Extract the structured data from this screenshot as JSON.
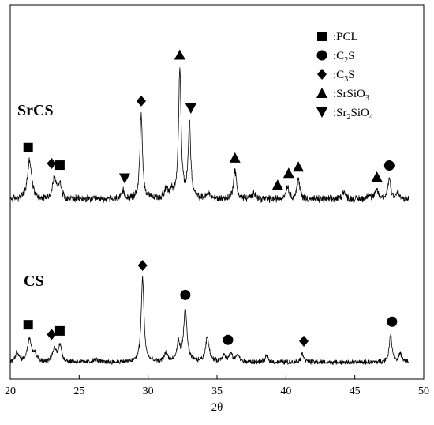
{
  "chart_data": {
    "type": "line",
    "title": "",
    "xlabel": "2θ",
    "ylabel": "",
    "xlim": [
      20,
      50
    ],
    "xticks": [
      20,
      25,
      30,
      35,
      40,
      45,
      50
    ],
    "grid": false,
    "background_levels": {
      "SrCS": 0.07,
      "CS": 0.05
    },
    "series": [
      {
        "name": "SrCS",
        "peaks": [
          {
            "x": 21.4,
            "h": 0.3,
            "w": 0.18
          },
          {
            "x": 23.2,
            "h": 0.16,
            "w": 0.15
          },
          {
            "x": 23.6,
            "h": 0.12,
            "w": 0.15
          },
          {
            "x": 28.2,
            "h": 0.06,
            "w": 0.12
          },
          {
            "x": 29.5,
            "h": 0.66,
            "w": 0.11
          },
          {
            "x": 31.3,
            "h": 0.07,
            "w": 0.15
          },
          {
            "x": 31.7,
            "h": 0.06,
            "w": 0.12
          },
          {
            "x": 32.3,
            "h": 1.0,
            "w": 0.11
          },
          {
            "x": 33.0,
            "h": 0.58,
            "w": 0.11
          },
          {
            "x": 34.4,
            "h": 0.05,
            "w": 0.15
          },
          {
            "x": 36.3,
            "h": 0.22,
            "w": 0.13
          },
          {
            "x": 37.7,
            "h": 0.05,
            "w": 0.15
          },
          {
            "x": 40.1,
            "h": 0.1,
            "w": 0.13
          },
          {
            "x": 40.9,
            "h": 0.15,
            "w": 0.13
          },
          {
            "x": 44.2,
            "h": 0.06,
            "w": 0.15
          },
          {
            "x": 46.0,
            "h": 0.04,
            "w": 0.13
          },
          {
            "x": 46.6,
            "h": 0.07,
            "w": 0.13
          },
          {
            "x": 47.5,
            "h": 0.16,
            "w": 0.13
          },
          {
            "x": 48.1,
            "h": 0.05,
            "w": 0.12
          }
        ]
      },
      {
        "name": "CS",
        "peaks": [
          {
            "x": 20.5,
            "h": 0.12,
            "w": 0.13
          },
          {
            "x": 21.4,
            "h": 0.28,
            "w": 0.18
          },
          {
            "x": 21.8,
            "h": 0.08,
            "w": 0.15
          },
          {
            "x": 23.2,
            "h": 0.15,
            "w": 0.15
          },
          {
            "x": 23.6,
            "h": 0.2,
            "w": 0.15
          },
          {
            "x": 26.2,
            "h": 0.03,
            "w": 0.2
          },
          {
            "x": 29.6,
            "h": 1.0,
            "w": 0.12
          },
          {
            "x": 31.3,
            "h": 0.11,
            "w": 0.14
          },
          {
            "x": 32.2,
            "h": 0.22,
            "w": 0.13
          },
          {
            "x": 32.7,
            "h": 0.63,
            "w": 0.14
          },
          {
            "x": 34.3,
            "h": 0.3,
            "w": 0.15
          },
          {
            "x": 35.5,
            "h": 0.09,
            "w": 0.14
          },
          {
            "x": 36.0,
            "h": 0.1,
            "w": 0.13
          },
          {
            "x": 36.5,
            "h": 0.09,
            "w": 0.13
          },
          {
            "x": 38.6,
            "h": 0.07,
            "w": 0.14
          },
          {
            "x": 41.2,
            "h": 0.1,
            "w": 0.14
          },
          {
            "x": 47.6,
            "h": 0.33,
            "w": 0.12
          },
          {
            "x": 48.3,
            "h": 0.1,
            "w": 0.12
          }
        ]
      }
    ],
    "legend": {
      "placement": "top-right",
      "entries": [
        {
          "marker": "square",
          "text": ":PCL"
        },
        {
          "marker": "circle",
          "text": ":C",
          "sub": "2",
          "tail": "S"
        },
        {
          "marker": "diamond",
          "text": ":C",
          "sub": "3",
          "tail": "S"
        },
        {
          "marker": "triangle-up",
          "text": ":SrSiO",
          "sub": "3",
          "tail": ""
        },
        {
          "marker": "triangle-down",
          "text": ":Sr",
          "sub": "2",
          "tail": "SiO",
          "sub2": "4"
        }
      ]
    },
    "phase_markers": {
      "SrCS": [
        {
          "shape": "square",
          "x": 21.3
        },
        {
          "shape": "square",
          "x": 23.6
        },
        {
          "shape": "diamond",
          "x": 23.0
        },
        {
          "shape": "triangle-down",
          "x": 28.3
        },
        {
          "shape": "diamond",
          "x": 29.5
        },
        {
          "shape": "triangle-up",
          "x": 32.3
        },
        {
          "shape": "triangle-down",
          "x": 33.1
        },
        {
          "shape": "triangle-up",
          "x": 36.3
        },
        {
          "shape": "triangle-up",
          "x": 39.4
        },
        {
          "shape": "triangle-up",
          "x": 40.2
        },
        {
          "shape": "triangle-up",
          "x": 40.9
        },
        {
          "shape": "triangle-up",
          "x": 46.6
        },
        {
          "shape": "circle",
          "x": 47.5
        }
      ],
      "CS": [
        {
          "shape": "square",
          "x": 21.3
        },
        {
          "shape": "square",
          "x": 23.6
        },
        {
          "shape": "diamond",
          "x": 23.0
        },
        {
          "shape": "diamond",
          "x": 29.6
        },
        {
          "shape": "circle",
          "x": 32.7
        },
        {
          "shape": "circle",
          "x": 35.8
        },
        {
          "shape": "diamond",
          "x": 41.3
        },
        {
          "shape": "circle",
          "x": 47.7
        }
      ]
    },
    "sample_labels": [
      "SrCS",
      "CS"
    ]
  }
}
